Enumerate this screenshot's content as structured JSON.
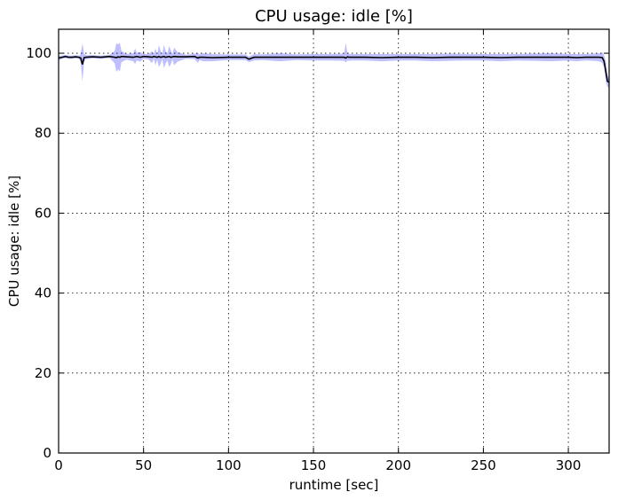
{
  "chart_data": {
    "type": "line",
    "title": "CPU usage: idle [%]",
    "xlabel": "runtime [sec]",
    "ylabel": "CPU usage: idle [%]",
    "xlim": [
      0,
      324
    ],
    "ylim": [
      0,
      106
    ],
    "xticks": [
      0,
      50,
      100,
      150,
      200,
      250,
      300
    ],
    "yticks": [
      0,
      20,
      40,
      60,
      80,
      100
    ],
    "grid": true,
    "colors": {
      "band": "#0000ff",
      "mean": "#000000"
    },
    "series": [
      {
        "x": [
          0,
          2,
          4,
          6,
          8,
          10,
          12,
          13,
          14,
          15,
          16,
          20,
          25,
          30,
          33,
          34,
          35,
          36,
          37,
          40,
          44,
          45,
          46,
          48,
          50,
          53,
          55,
          56,
          57,
          58,
          59,
          60,
          61,
          62,
          63,
          64,
          65,
          66,
          67,
          68,
          70,
          75,
          80,
          82,
          83,
          85,
          90,
          100,
          110,
          112,
          115,
          120,
          130,
          140,
          150,
          160,
          168,
          169,
          170,
          171,
          172,
          180,
          190,
          200,
          210,
          220,
          230,
          240,
          250,
          260,
          270,
          280,
          290,
          300,
          305,
          310,
          315,
          318,
          320,
          321,
          322,
          323,
          324
        ],
        "mean": [
          98.8,
          99.0,
          99.2,
          99.0,
          99.0,
          99.1,
          99.0,
          98.8,
          97.2,
          98.9,
          99.0,
          99.1,
          99.0,
          99.2,
          99.0,
          98.9,
          99.1,
          99.0,
          99.2,
          99.1,
          99.0,
          99.1,
          99.2,
          99.0,
          99.2,
          99.1,
          99.0,
          99.2,
          99.1,
          99.0,
          99.2,
          99.0,
          99.1,
          99.2,
          99.0,
          99.1,
          99.2,
          99.0,
          99.1,
          99.2,
          99.1,
          99.1,
          99.2,
          98.8,
          99.0,
          99.0,
          98.9,
          99.0,
          99.0,
          98.5,
          99.0,
          99.0,
          99.0,
          99.0,
          99.0,
          99.0,
          99.0,
          98.8,
          99.1,
          99.0,
          99.0,
          99.0,
          98.9,
          99.0,
          99.0,
          98.9,
          99.0,
          99.0,
          99.0,
          98.9,
          99.0,
          99.0,
          99.0,
          99.0,
          98.9,
          99.0,
          99.0,
          99.0,
          98.9,
          98.0,
          95.5,
          93.0,
          92.7
        ],
        "lower": [
          98.2,
          98.6,
          98.8,
          98.6,
          98.6,
          98.7,
          98.6,
          97.8,
          92.8,
          97.9,
          98.5,
          98.7,
          98.6,
          98.8,
          97.5,
          95.3,
          96.0,
          95.4,
          97.8,
          98.4,
          98.0,
          97.3,
          98.2,
          97.9,
          98.6,
          98.4,
          97.5,
          98.6,
          97.0,
          98.4,
          96.5,
          97.3,
          98.5,
          96.3,
          97.5,
          98.2,
          96.6,
          97.2,
          98.4,
          97.0,
          97.9,
          98.6,
          98.5,
          97.6,
          98.3,
          98.0,
          98.0,
          98.3,
          98.3,
          97.8,
          98.2,
          98.3,
          98.0,
          98.3,
          98.2,
          98.2,
          98.1,
          97.7,
          98.2,
          98.1,
          98.2,
          98.2,
          98.0,
          98.2,
          98.2,
          98.0,
          98.1,
          98.2,
          98.2,
          98.0,
          98.2,
          98.1,
          98.0,
          98.2,
          98.0,
          98.2,
          98.1,
          98.0,
          97.6,
          96.5,
          93.0,
          91.5,
          91.5
        ],
        "upper": [
          99.4,
          99.4,
          99.6,
          99.4,
          99.4,
          99.5,
          99.4,
          99.8,
          102.5,
          99.9,
          99.5,
          99.5,
          99.4,
          99.6,
          100.5,
          102.5,
          102.2,
          102.6,
          100.6,
          99.8,
          100.0,
          101.2,
          100.2,
          100.3,
          99.8,
          99.8,
          100.5,
          99.8,
          101.2,
          99.6,
          102.0,
          100.7,
          99.7,
          102.1,
          100.5,
          100.0,
          101.8,
          100.8,
          99.8,
          101.4,
          100.3,
          99.6,
          99.9,
          100.0,
          99.7,
          100.0,
          99.8,
          99.7,
          99.7,
          99.2,
          99.8,
          99.7,
          100.0,
          99.7,
          99.8,
          99.8,
          99.9,
          102.6,
          100.0,
          99.9,
          99.8,
          99.8,
          99.8,
          99.8,
          99.8,
          99.8,
          99.9,
          99.8,
          99.8,
          99.8,
          99.8,
          99.9,
          100.0,
          99.8,
          99.8,
          99.8,
          99.9,
          100.0,
          100.2,
          99.5,
          98.0,
          94.5,
          93.9
        ]
      }
    ]
  }
}
